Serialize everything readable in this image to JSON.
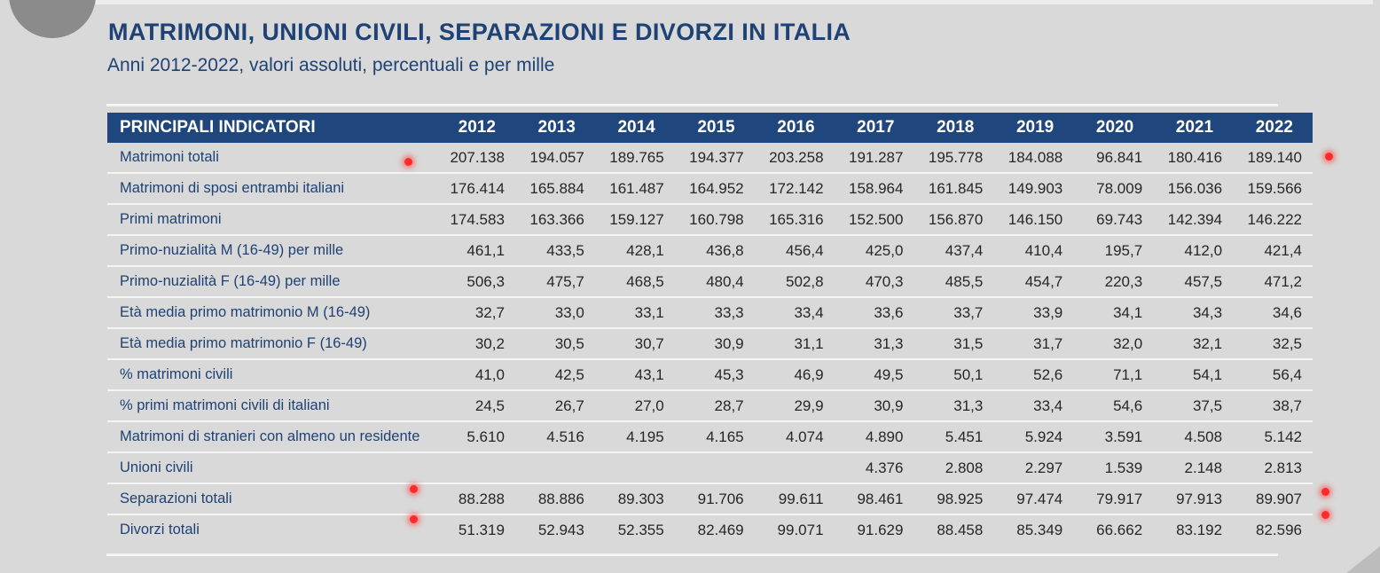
{
  "title": "MATRIMONI, UNIONI CIVILI, SEPARAZIONI E DIVORZI IN ITALIA",
  "subtitle": "Anni 2012-2022, valori assoluti, percentuali e per mille",
  "table": {
    "header_label": "PRINCIPALI INDICATORI",
    "years": [
      "2012",
      "2013",
      "2014",
      "2015",
      "2016",
      "2017",
      "2018",
      "2019",
      "2020",
      "2021",
      "2022"
    ],
    "rows": [
      {
        "label": "Matrimoni totali",
        "values": [
          "207.138",
          "194.057",
          "189.765",
          "194.377",
          "203.258",
          "191.287",
          "195.778",
          "184.088",
          "96.841",
          "180.416",
          "189.140"
        ]
      },
      {
        "label": "Matrimoni di sposi entrambi italiani",
        "values": [
          "176.414",
          "165.884",
          "161.487",
          "164.952",
          "172.142",
          "158.964",
          "161.845",
          "149.903",
          "78.009",
          "156.036",
          "159.566"
        ]
      },
      {
        "label": "Primi matrimoni",
        "values": [
          "174.583",
          "163.366",
          "159.127",
          "160.798",
          "165.316",
          "152.500",
          "156.870",
          "146.150",
          "69.743",
          "142.394",
          "146.222"
        ]
      },
      {
        "label": "Primo-nuzialità M (16-49) per mille",
        "values": [
          "461,1",
          "433,5",
          "428,1",
          "436,8",
          "456,4",
          "425,0",
          "437,4",
          "410,4",
          "195,7",
          "412,0",
          "421,4"
        ]
      },
      {
        "label": "Primo-nuzialità F (16-49) per mille",
        "values": [
          "506,3",
          "475,7",
          "468,5",
          "480,4",
          "502,8",
          "470,3",
          "485,5",
          "454,7",
          "220,3",
          "457,5",
          "471,2"
        ]
      },
      {
        "label": "Età media primo matrimonio M (16-49)",
        "values": [
          "32,7",
          "33,0",
          "33,1",
          "33,3",
          "33,4",
          "33,6",
          "33,7",
          "33,9",
          "34,1",
          "34,3",
          "34,6"
        ]
      },
      {
        "label": "Età media primo matrimonio F (16-49)",
        "values": [
          "30,2",
          "30,5",
          "30,7",
          "30,9",
          "31,1",
          "31,3",
          "31,5",
          "31,7",
          "32,0",
          "32,1",
          "32,5"
        ]
      },
      {
        "label": "% matrimoni civili",
        "values": [
          "41,0",
          "42,5",
          "43,1",
          "45,3",
          "46,9",
          "49,5",
          "50,1",
          "52,6",
          "71,1",
          "54,1",
          "56,4"
        ]
      },
      {
        "label": "% primi matrimoni civili di italiani",
        "values": [
          "24,5",
          "26,7",
          "27,0",
          "28,7",
          "29,9",
          "30,9",
          "31,3",
          "33,4",
          "54,6",
          "37,5",
          "38,7"
        ]
      },
      {
        "label": "Matrimoni di stranieri con almeno un residente",
        "values": [
          "5.610",
          "4.516",
          "4.195",
          "4.165",
          "4.074",
          "4.890",
          "5.451",
          "5.924",
          "3.591",
          "4.508",
          "5.142"
        ]
      },
      {
        "label": "Unioni civili",
        "values": [
          "",
          "",
          "",
          "",
          "",
          "4.376",
          "2.808",
          "2.297",
          "1.539",
          "2.148",
          "2.813"
        ]
      },
      {
        "label": "Separazioni totali",
        "values": [
          "88.288",
          "88.886",
          "89.303",
          "91.706",
          "99.611",
          "98.461",
          "98.925",
          "97.474",
          "79.917",
          "97.913",
          "89.907"
        ]
      },
      {
        "label": "Divorzi totali",
        "values": [
          "51.319",
          "52.943",
          "52.355",
          "82.469",
          "99.071",
          "91.629",
          "88.458",
          "85.349",
          "66.662",
          "83.192",
          "82.596"
        ]
      }
    ]
  },
  "marker_color": "#ff2b2b",
  "header_color": "#1f477d",
  "title_color": "#1e4274"
}
